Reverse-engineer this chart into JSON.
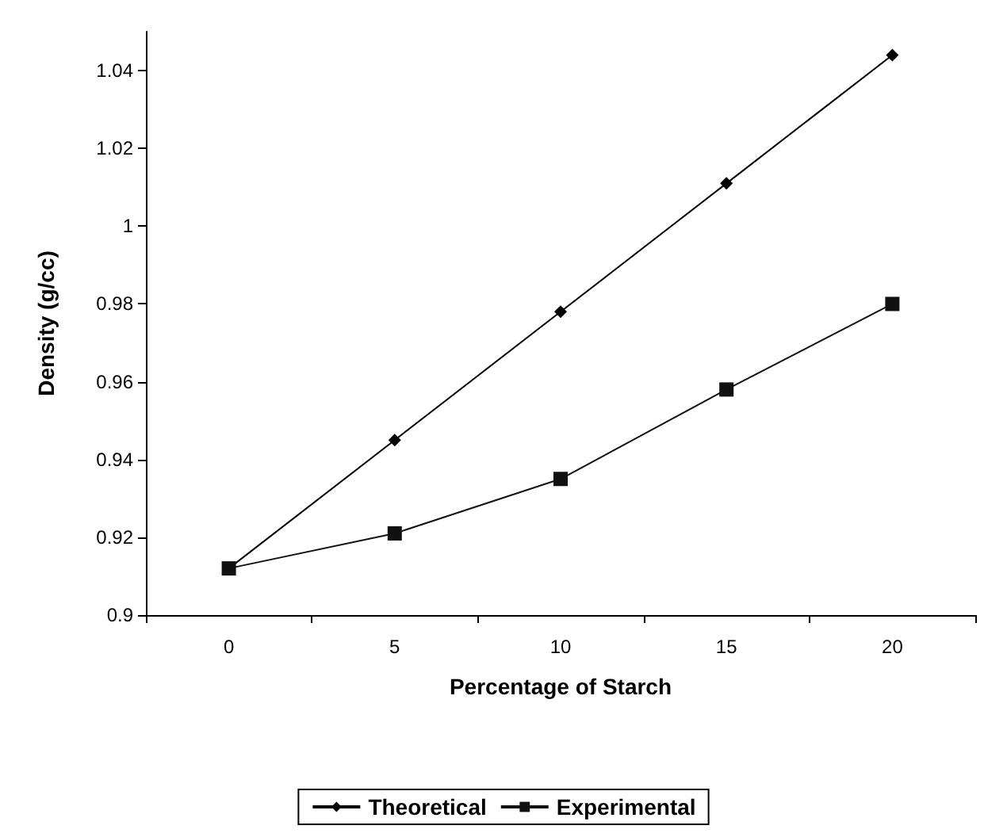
{
  "chart_data": {
    "type": "line",
    "xlabel": "Percentage of Starch",
    "ylabel": "Density (g/cc)",
    "categories": [
      "0",
      "5",
      "10",
      "15",
      "20"
    ],
    "series": [
      {
        "name": "Theoretical",
        "color": "#000000",
        "marker": "diamond",
        "values": [
          0.912,
          0.945,
          0.978,
          1.011,
          1.044
        ]
      },
      {
        "name": "Experimental",
        "color": "#111111",
        "marker": "square",
        "values": [
          0.912,
          0.921,
          0.935,
          0.958,
          0.98
        ]
      }
    ],
    "ylim": [
      0.9,
      1.05
    ],
    "yticks": [
      0.9,
      0.92,
      0.94,
      0.96,
      0.98,
      1,
      1.02,
      1.04
    ],
    "grid": false,
    "legend": "bottom",
    "line_style": "solid"
  }
}
